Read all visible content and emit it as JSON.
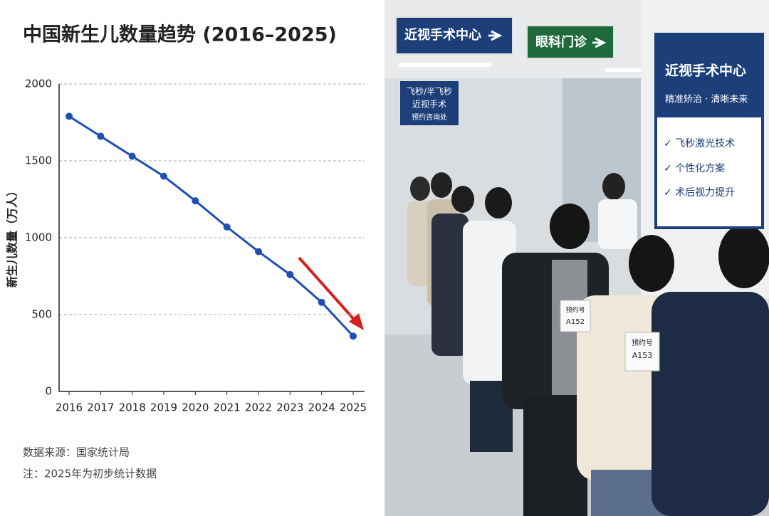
{
  "chart_data": {
    "type": "line",
    "title": "中国新生儿数量趋势 (2016–2025)",
    "y_label": "新生儿数量（万人）",
    "categories": [
      "2016",
      "2017",
      "2018",
      "2019",
      "2020",
      "2021",
      "2022",
      "2023",
      "2024",
      "2025"
    ],
    "values": [
      1790,
      1660,
      1530,
      1400,
      1240,
      1070,
      910,
      760,
      580,
      360
    ],
    "color": "#1f4fb5",
    "ylim": [
      0,
      2000
    ],
    "yticks": [
      0,
      500,
      1000,
      1500,
      2000
    ],
    "grid": true,
    "notes": [
      "数据来源：国家统计局",
      "注：2025年为初步统计数据"
    ]
  },
  "photo": {
    "sign_surgery": "近视手术中心",
    "sign_eye": "眼科门诊",
    "sign_consult": [
      "飞秒/半飞秒",
      "近视手术",
      "预约咨询处"
    ],
    "board_title": "近视手术中心",
    "board_subtitle": "精准矫治 · 清晰未来",
    "board_items": [
      "✓ 飞秒激光技术",
      "✓ 个性化方案",
      "✓ 术后视力提升"
    ],
    "tickets": [
      [
        "预约号",
        "A152"
      ],
      [
        "预约号",
        "A153"
      ]
    ]
  }
}
